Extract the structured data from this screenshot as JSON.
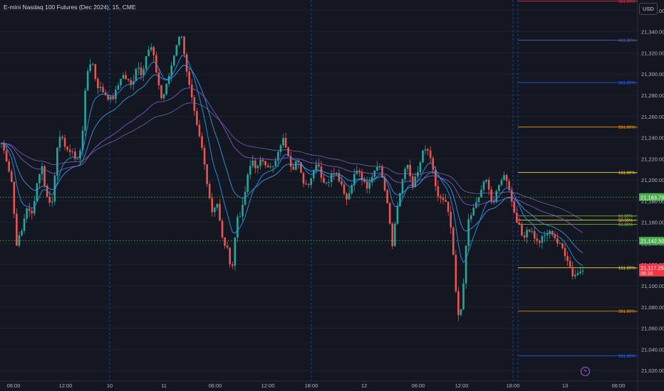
{
  "title": "E-mini Nasdaq 100 Futures (Dec 2024), 15, CME",
  "currency": "USD",
  "bolt_icon": "lightning-icon",
  "colors": {
    "background": "#131722",
    "up": "#26a69a",
    "down": "#ef5350",
    "grid": "#1e222d",
    "axis_text": "#b2b5be",
    "session_line": "#2962ff",
    "h_dotted": "#4caf50",
    "ema_fast": "#2196f3",
    "ema_slow": "#7e57c2",
    "price_label_red": "#f23645",
    "price_label_green": "#4caf50"
  },
  "y_axis": {
    "min": 21010,
    "max": 21370,
    "ticks": [
      "21,360.00",
      "21,340.00",
      "21,320.00",
      "21,300.00",
      "21,280.00",
      "21,260.00",
      "21,240.00",
      "21,220.00",
      "21,200.00",
      "21,180.00",
      "21,160.00",
      "21,140.00",
      "21,120.00",
      "21,100.00",
      "21,080.00",
      "21,060.00",
      "21,040.00",
      "21,020.00"
    ]
  },
  "x_axis": {
    "ticks": [
      "06:00",
      "12:00",
      "10",
      "11",
      "06:00",
      "12:00",
      "18:00",
      "12",
      "06:00",
      "12:00",
      "18:00",
      "13",
      "06:00"
    ]
  },
  "session_separators": [
    "10",
    "11",
    "12",
    "13"
  ],
  "price_labels": [
    {
      "text": "21,183.75",
      "value": 21183.75,
      "color": "green"
    },
    {
      "text": "21,142.50",
      "value": 21142.5,
      "color": "green"
    },
    {
      "text": "21,117.25",
      "value": 21117.25,
      "color": "red",
      "sub": "06:26"
    }
  ],
  "horizontal_levels": [
    {
      "value": 21183.75,
      "style": "dotted"
    },
    {
      "value": 21142.5,
      "style": "dotted"
    }
  ],
  "fib_levels": [
    {
      "label": "361.80%",
      "value": 21369,
      "color": "#f23645"
    },
    {
      "label": "461.80%",
      "value": 21332,
      "color": "#5c5aa8"
    },
    {
      "label": "361.80%",
      "value": 21292,
      "color": "#2962ff"
    },
    {
      "label": "261.80%",
      "value": 21250,
      "color": "#ff9800"
    },
    {
      "label": "161.80%",
      "value": 21207,
      "color": "#fdd835"
    },
    {
      "label": "61.80%",
      "value": 21166,
      "color": "#8bc34a"
    },
    {
      "label": "50.00%",
      "value": 21162,
      "color": "#fdd835"
    },
    {
      "label": "61.80%",
      "value": 21158,
      "color": "#8bc34a"
    },
    {
      "label": "161.80%",
      "value": 21117,
      "color": "#fdd835"
    },
    {
      "label": "261.80%",
      "value": 21076,
      "color": "#ff9800"
    },
    {
      "label": "361.80%",
      "value": 21034,
      "color": "#2962ff"
    }
  ],
  "price_path": [
    21235,
    21220,
    21200,
    21140,
    21150,
    21175,
    21165,
    21195,
    21215,
    21185,
    21175,
    21225,
    21245,
    21225,
    21230,
    21215,
    21235,
    21300,
    21315,
    21290,
    21285,
    21280,
    21275,
    21285,
    21300,
    21295,
    21288,
    21310,
    21300,
    21320,
    21325,
    21300,
    21275,
    21290,
    21310,
    21330,
    21338,
    21300,
    21275,
    21250,
    21230,
    21200,
    21170,
    21180,
    21145,
    21135,
    21115,
    21165,
    21170,
    21200,
    21220,
    21210,
    21220,
    21215,
    21210,
    21220,
    21240,
    21230,
    21210,
    21220,
    21200,
    21195,
    21205,
    21220,
    21200,
    21195,
    21210,
    21205,
    21195,
    21180,
    21200,
    21210,
    21200,
    21190,
    21205,
    21215,
    21205,
    21180,
    21140,
    21175,
    21200,
    21215,
    21195,
    21205,
    21225,
    21230,
    21210,
    21185,
    21180,
    21175,
    21140,
    21070,
    21085,
    21160,
    21170,
    21180,
    21195,
    21200,
    21175,
    21190,
    21205,
    21200,
    21175,
    21160,
    21145,
    21155,
    21150,
    21140,
    21145,
    21150,
    21150,
    21140,
    21135,
    21125,
    21110,
    21112,
    21117
  ]
}
